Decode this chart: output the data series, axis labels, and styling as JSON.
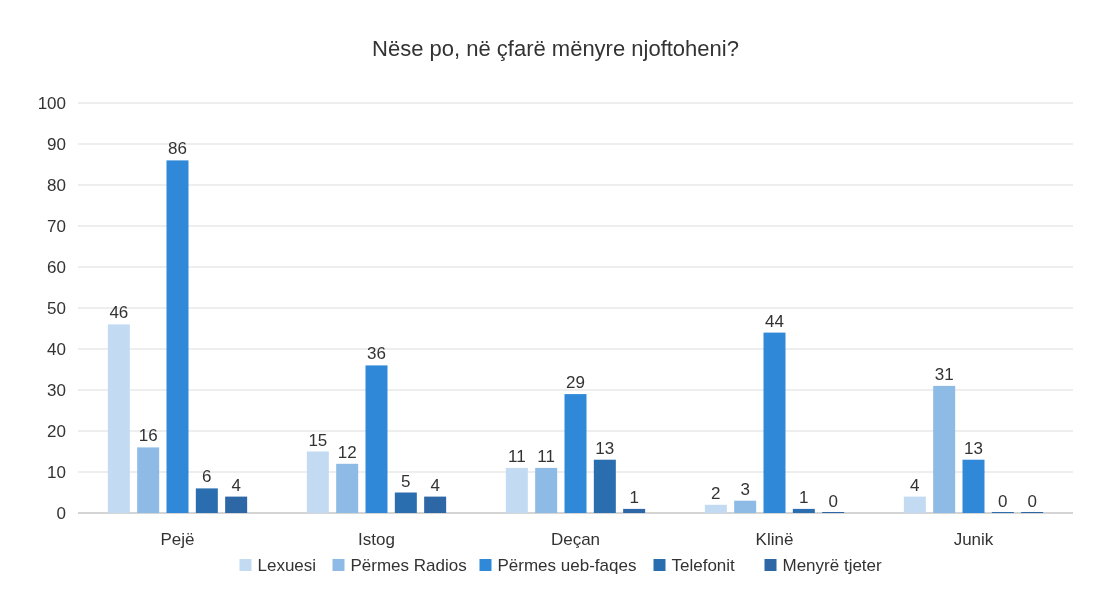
{
  "chart_data": {
    "type": "bar",
    "title": "Nëse po, në çfarë mënyre njoftoheni?",
    "categories": [
      "Pejë",
      "Istog",
      "Deçan",
      "Klinë",
      "Junik"
    ],
    "series": [
      {
        "name": "Lexuesi",
        "color": "#c2dbf3",
        "values": [
          46,
          15,
          11,
          2,
          4
        ]
      },
      {
        "name": "Përmes Radios",
        "color": "#8dbbe6",
        "values": [
          16,
          12,
          11,
          3,
          31
        ]
      },
      {
        "name": "Përmes ueb-faqes",
        "color": "#2f88d8",
        "values": [
          86,
          36,
          29,
          44,
          13
        ]
      },
      {
        "name": "Telefonit",
        "color": "#2a6eaf",
        "values": [
          6,
          5,
          13,
          1,
          0
        ]
      },
      {
        "name": "Menyrë tjeter",
        "color": "#2d67a6",
        "values": [
          4,
          4,
          1,
          0,
          0
        ]
      }
    ],
    "ylim": [
      0,
      100
    ],
    "yticks": [
      0,
      10,
      20,
      30,
      40,
      50,
      60,
      70,
      80,
      90,
      100
    ],
    "grid": "y",
    "legend": "bottom",
    "data_labels": true
  }
}
